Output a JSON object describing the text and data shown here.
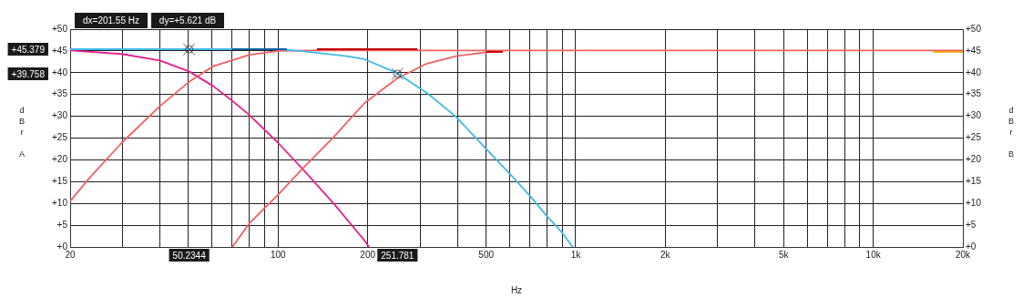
{
  "chart_data": {
    "type": "line",
    "xlabel": "Hz",
    "ylabel": "dBr A",
    "y2label": "dBr B",
    "xlim": [
      20,
      20000
    ],
    "ylim": [
      0,
      50
    ],
    "y2lim": [
      0,
      50
    ],
    "xticks": [
      20,
      {
        "value": 30,
        "label": null
      },
      {
        "value": 40,
        "label": null
      },
      {
        "value": 50,
        "label": null
      },
      {
        "value": 60,
        "label": null
      },
      {
        "value": 70,
        "label": null
      },
      {
        "value": 80,
        "label": null
      },
      {
        "value": 90,
        "label": null
      },
      100,
      200,
      {
        "value": 300,
        "label": null
      },
      {
        "value": 400,
        "label": null
      },
      500,
      {
        "value": 600,
        "label": null
      },
      {
        "value": 700,
        "label": null
      },
      {
        "value": 800,
        "label": null
      },
      {
        "value": 900,
        "label": null
      },
      {
        "value": 1000,
        "label": "1k"
      },
      {
        "value": 2000,
        "label": "2k"
      },
      {
        "value": 3000,
        "label": null
      },
      {
        "value": 4000,
        "label": null
      },
      {
        "value": 5000,
        "label": "5k"
      },
      {
        "value": 6000,
        "label": null
      },
      {
        "value": 7000,
        "label": null
      },
      {
        "value": 8000,
        "label": null
      },
      {
        "value": 9000,
        "label": null
      },
      {
        "value": 10000,
        "label": "10k"
      },
      {
        "value": 20000,
        "label": "20k"
      }
    ],
    "yticks": [
      {
        "value": 0,
        "label": "+0"
      },
      {
        "value": 5,
        "label": "+5"
      },
      {
        "value": 10,
        "label": "+10"
      },
      {
        "value": 15,
        "label": "+15"
      },
      {
        "value": 20,
        "label": "+20"
      },
      {
        "value": 25,
        "label": "+25"
      },
      {
        "value": 30,
        "label": "+30"
      },
      {
        "value": 35,
        "label": "+35"
      },
      {
        "value": 40,
        "label": "+40"
      },
      {
        "value": 45,
        "label": "+45"
      },
      {
        "value": 50,
        "label": "+50"
      }
    ],
    "y2ticks": [
      {
        "value": 0,
        "label": "+0"
      },
      {
        "value": 5,
        "label": "+5"
      },
      {
        "value": 10,
        "label": "+10"
      },
      {
        "value": 15,
        "label": "+15"
      },
      {
        "value": 20,
        "label": "+20"
      },
      {
        "value": 25,
        "label": "+25"
      },
      {
        "value": 30,
        "label": "+30"
      },
      {
        "value": 35,
        "label": "+35"
      },
      {
        "value": 40,
        "label": "+40"
      },
      {
        "value": 45,
        "label": "+45"
      },
      {
        "value": 50,
        "label": "+50"
      }
    ],
    "log": "x",
    "grid": true,
    "legend": false,
    "marker": "none",
    "line_style": "solid",
    "series": [
      {
        "color": "#e8208c",
        "x": [
          20,
          29.8,
          40,
          50.2,
          60.6,
          69.7,
          80,
          100,
          122,
          154,
          195,
          202
        ],
        "values": [
          45.1,
          44.3,
          42.8,
          40.3,
          36.9,
          33.7,
          30.3,
          23.9,
          17.6,
          9.9,
          1.5,
          0
        ]
      },
      {
        "color": "#f06060",
        "x": [
          20,
          23,
          29.8,
          40,
          50.2,
          60.6,
          69.7,
          80,
          100,
          130,
          20000
        ],
        "values": [
          10.5,
          15.5,
          23.9,
          32.3,
          37.9,
          41.5,
          42.8,
          44.1,
          45.0,
          45.1,
          45.1
        ]
      },
      {
        "color": "#f06060",
        "x": [
          70.2,
          80,
          100,
          122,
          154,
          195,
          250,
          316,
          396,
          500,
          569
        ],
        "values": [
          0,
          5.4,
          12.0,
          18.3,
          25.3,
          33.0,
          38.6,
          42.1,
          43.8,
          44.7,
          44.8
        ]
      },
      {
        "color": "#40b8e8",
        "x": [
          20,
          100,
          122,
          170,
          195,
          250,
          320,
          396,
          500,
          604,
          703,
          800,
          900,
          977
        ],
        "values": [
          45.4,
          45.4,
          44.9,
          43.8,
          43.1,
          40.0,
          35.1,
          29.9,
          22.5,
          16.6,
          11.7,
          7.1,
          3.3,
          0
        ]
      },
      {
        "color": "#c00000",
        "x": [
          135,
          294
        ],
        "values": [
          45.4,
          45.4
        ]
      },
      {
        "color": "#c00000",
        "x": [
          500,
          569
        ],
        "values": [
          44.8,
          44.8
        ]
      },
      {
        "color": "#1060a0",
        "x": [
          70,
          107
        ],
        "values": [
          45.4,
          45.4
        ]
      },
      {
        "color": "#f0a000",
        "x": [
          15900,
          20000
        ],
        "values": [
          44.8,
          44.8
        ]
      },
      {
        "type": "scatter",
        "color": "#333333",
        "marker": "cross",
        "x": [
          50.2344,
          251.781
        ],
        "values": [
          45.379,
          39.758
        ]
      }
    ],
    "annotations": [
      "dx=201.55 Hz",
      "dy=+5.621 dB",
      "+45.379",
      "50.2344",
      "+39.758",
      "251.781"
    ]
  }
}
